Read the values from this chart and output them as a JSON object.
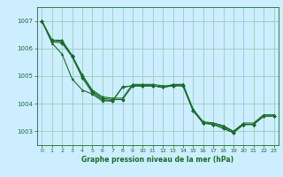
{
  "xlabel": "Graphe pression niveau de la mer (hPa)",
  "xlim": [
    -0.5,
    23.5
  ],
  "ylim": [
    1002.5,
    1007.5
  ],
  "yticks": [
    1003,
    1004,
    1005,
    1006,
    1007
  ],
  "xticks": [
    0,
    1,
    2,
    3,
    4,
    5,
    6,
    7,
    8,
    9,
    10,
    11,
    12,
    13,
    14,
    15,
    16,
    17,
    18,
    19,
    20,
    21,
    22,
    23
  ],
  "background_color": "#cceeff",
  "grid_color": "#99ccbb",
  "line_color": "#1a6b2a",
  "line1": [
    1007.0,
    1006.3,
    1006.25,
    1005.75,
    1005.0,
    1004.45,
    1004.2,
    1004.15,
    1004.15,
    1004.65,
    1004.65,
    1004.65,
    1004.6,
    1004.65,
    1004.65,
    1003.75,
    1003.3,
    1003.25,
    1003.15,
    1002.95,
    1003.25,
    1003.25,
    1003.55,
    1003.55
  ],
  "line2": [
    1007.0,
    1006.25,
    1006.2,
    1005.7,
    1004.95,
    1004.4,
    1004.15,
    1004.1,
    1004.6,
    1004.65,
    1004.65,
    1004.65,
    1004.6,
    1004.65,
    1004.65,
    1003.75,
    1003.3,
    1003.25,
    1003.1,
    1002.95,
    1003.25,
    1003.25,
    1003.55,
    1003.55
  ],
  "line3": [
    1007.0,
    1006.3,
    1006.3,
    1005.75,
    1005.05,
    1004.5,
    1004.25,
    1004.2,
    1004.2,
    1004.7,
    1004.7,
    1004.7,
    1004.65,
    1004.65,
    1004.7,
    1003.8,
    1003.35,
    1003.3,
    1003.2,
    1003.0,
    1003.3,
    1003.3,
    1003.6,
    1003.6
  ],
  "line4": [
    1007.0,
    1006.2,
    1005.8,
    1004.9,
    1004.5,
    1004.35,
    1004.1,
    1004.1,
    1004.6,
    1004.65,
    1004.65,
    1004.65,
    1004.6,
    1004.7,
    1004.7,
    1003.8,
    1003.3,
    1003.3,
    1003.2,
    1003.0,
    1003.25,
    1003.25,
    1003.55,
    1003.55
  ],
  "markersize": 2.0,
  "linewidth": 0.8
}
